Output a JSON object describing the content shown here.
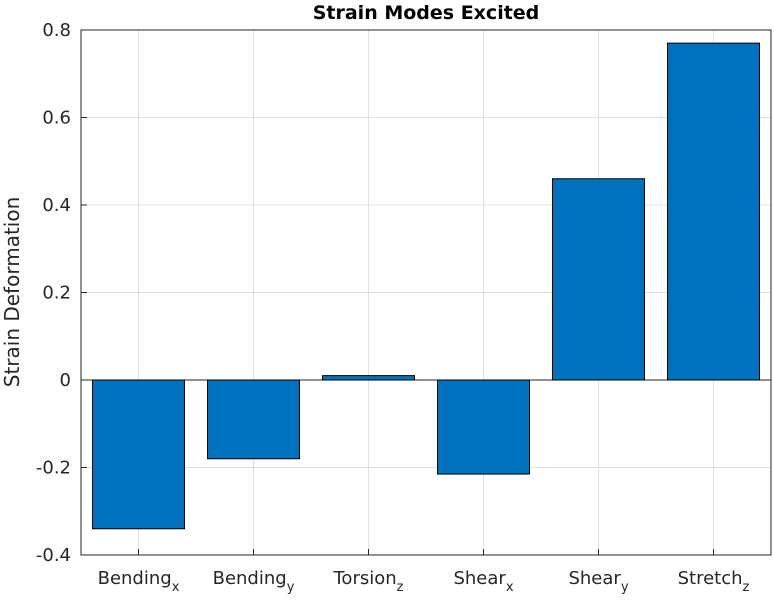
{
  "chart_data": {
    "type": "bar",
    "title": "Strain Modes Excited",
    "xlabel": "",
    "ylabel": "Strain Deformation",
    "categories": [
      {
        "base": "Bending",
        "sub": "x"
      },
      {
        "base": "Bending",
        "sub": "y"
      },
      {
        "base": "Torsion",
        "sub": "z"
      },
      {
        "base": "Shear",
        "sub": "x"
      },
      {
        "base": "Shear",
        "sub": "y"
      },
      {
        "base": "Stretch",
        "sub": "z"
      }
    ],
    "values": [
      -0.34,
      -0.18,
      0.01,
      -0.215,
      0.46,
      0.77
    ],
    "ylim": [
      -0.4,
      0.8
    ],
    "yticks": [
      "-0.4",
      "-0.2",
      "0",
      "0.2",
      "0.4",
      "0.6",
      "0.8"
    ],
    "grid": true,
    "bar_color": "#0072BD"
  }
}
